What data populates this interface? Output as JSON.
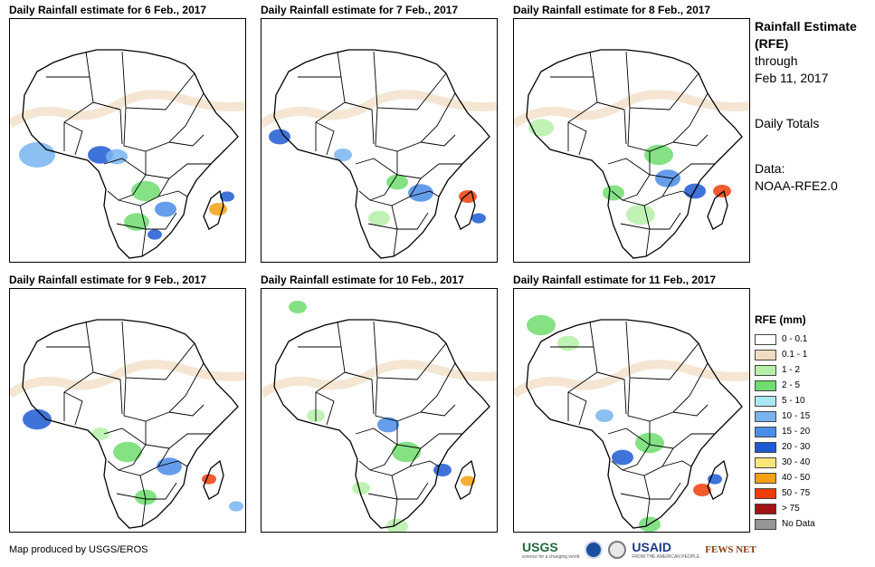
{
  "panels": [
    {
      "title": "Daily Rainfall estimate for 6 Feb., 2017"
    },
    {
      "title": "Daily Rainfall estimate for 7 Feb., 2017"
    },
    {
      "title": "Daily Rainfall estimate for 8 Feb., 2017"
    },
    {
      "title": "Daily Rainfall estimate for 9 Feb., 2017"
    },
    {
      "title": "Daily Rainfall estimate for 10 Feb., 2017"
    },
    {
      "title": "Daily Rainfall estimate for 11 Feb., 2017"
    }
  ],
  "sidebar": {
    "title": "Rainfall Estimate (RFE)",
    "through": "through",
    "date": "Feb 11, 2017",
    "totals": "Daily Totals",
    "data_label": "Data:",
    "data_source": "NOAA-RFE2.0"
  },
  "legend": {
    "title": "RFE (mm)",
    "items": [
      {
        "label": "0 - 0.1",
        "color": "#ffffff"
      },
      {
        "label": "0.1 - 1",
        "color": "#f0dcc0"
      },
      {
        "label": "1 - 2",
        "color": "#b6f0a8"
      },
      {
        "label": "2 - 5",
        "color": "#6edc6e"
      },
      {
        "label": "5 - 10",
        "color": "#a8e8f4"
      },
      {
        "label": "10 - 15",
        "color": "#78b4f0"
      },
      {
        "label": "15 - 20",
        "color": "#4a8ce8"
      },
      {
        "label": "20 - 30",
        "color": "#1e5ad2"
      },
      {
        "label": "30 - 40",
        "color": "#fae678"
      },
      {
        "label": "40 - 50",
        "color": "#f5a014"
      },
      {
        "label": "50 - 75",
        "color": "#f03c0a"
      },
      {
        "label": "> 75",
        "color": "#a01414"
      },
      {
        "label": "No Data",
        "color": "#969696"
      }
    ]
  },
  "credit": "Map produced by USGS/EROS",
  "logos": {
    "usgs": "USGS",
    "usgs_tag": "science for a changing world",
    "usaid": "USAID",
    "usaid_tag": "FROM THE AMERICAN PEOPLE",
    "fews": "FEWS NET"
  }
}
